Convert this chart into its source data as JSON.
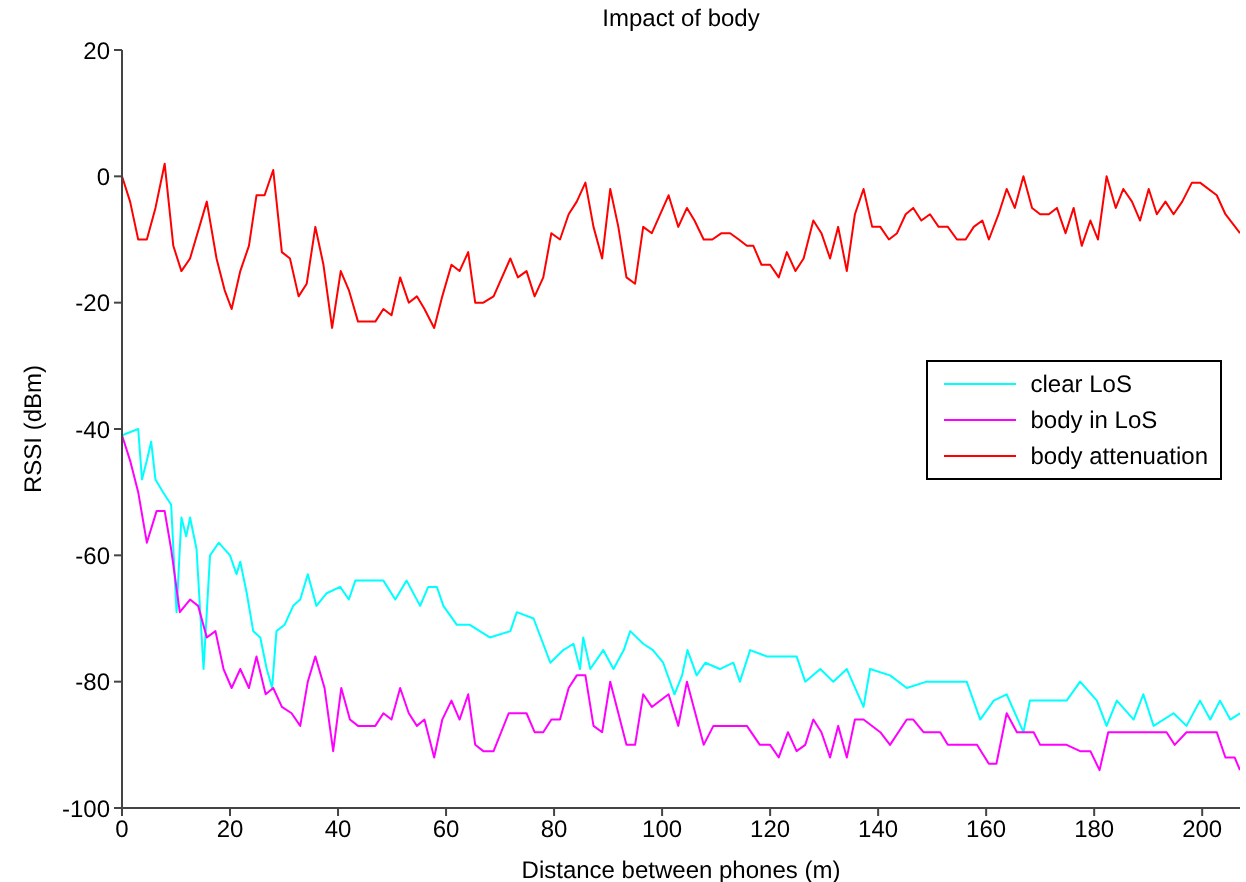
{
  "chart_data": {
    "type": "line",
    "title": "Impact of body",
    "xlabel": "Distance between phones (m)",
    "ylabel": "RSSI (dBm)",
    "xlim": [
      0,
      207
    ],
    "xticks": [
      0,
      20,
      40,
      60,
      80,
      100,
      120,
      140,
      160,
      180,
      200
    ],
    "ylim": [
      -100,
      20
    ],
    "yticks": [
      -100,
      -80,
      -60,
      -40,
      -20,
      0,
      20
    ],
    "legend": "right",
    "marker": "none",
    "line_style": "solid",
    "series": [
      {
        "name": "clear LoS",
        "color": "#00ffff",
        "x": [
          0,
          3,
          3.7,
          4.6,
          5.4,
          6.2,
          7.6,
          9.1,
          10.1,
          11,
          11.9,
          12.6,
          13.8,
          15.1,
          16.3,
          17.9,
          20,
          21.2,
          21.9,
          23.1,
          24.3,
          25.6,
          26.8,
          27.8,
          28.6,
          30.1,
          31.7,
          33,
          34.4,
          36,
          37.9,
          40.4,
          42,
          43.2,
          44.7,
          48.4,
          50.6,
          52.7,
          55.2,
          56.7,
          58.3,
          59.5,
          62,
          64.4,
          68.1,
          71.9,
          73.1,
          76.2,
          79.3,
          81.7,
          83.6,
          84.8,
          85.4,
          86.7,
          89.1,
          91,
          92.9,
          94.1,
          96.5,
          98.3,
          100.2,
          102.3,
          103.7,
          104.7,
          106.4,
          108,
          110.7,
          113.2,
          114.4,
          116.3,
          119.4,
          124.9,
          126.5,
          129.3,
          131.7,
          134.2,
          137.3,
          138.5,
          142.2,
          145.3,
          149,
          152.7,
          156.4,
          158.9,
          161.4,
          163.8,
          166.9,
          168.1,
          171.2,
          174.9,
          177.4,
          180.5,
          182.3,
          184.2,
          187.3,
          189.1,
          191,
          194.7,
          197.1,
          199.6,
          201.5,
          203.3,
          205.2,
          207
        ],
        "values": [
          -41,
          -40,
          -48,
          -45,
          -42,
          -48,
          -50,
          -52,
          -69,
          -54,
          -57,
          -54,
          -59,
          -78,
          -60,
          -58,
          -60,
          -63,
          -61,
          -66,
          -72,
          -73,
          -78,
          -81,
          -72,
          -71,
          -68,
          -67,
          -63,
          -68,
          -66,
          -65,
          -67,
          -64,
          -64,
          -64,
          -67,
          -64,
          -68,
          -65,
          -65,
          -68,
          -71,
          -71,
          -73,
          -72,
          -69,
          -70,
          -77,
          -75,
          -74,
          -78,
          -73,
          -78,
          -75,
          -78,
          -75,
          -72,
          -74,
          -75,
          -77,
          -82,
          -79,
          -75,
          -79,
          -77,
          -78,
          -77,
          -80,
          -75,
          -76,
          -76,
          -80,
          -78,
          -80,
          -78,
          -84,
          -78,
          -79,
          -81,
          -80,
          -80,
          -80,
          -86,
          -83,
          -82,
          -88,
          -83,
          -83,
          -83,
          -80,
          -83,
          -87,
          -83,
          -86,
          -82,
          -87,
          -85,
          -87,
          -83,
          -86,
          -83,
          -86,
          -85
        ]
      },
      {
        "name": "body in LoS",
        "color": "#ff00ff",
        "x": [
          0,
          1.5,
          3,
          4.6,
          6.4,
          7.9,
          9.1,
          10.7,
          12.6,
          14.1,
          15.7,
          17.3,
          18.8,
          20.3,
          21.9,
          23.5,
          24.9,
          26.6,
          28,
          29.6,
          31.4,
          33,
          34.4,
          35.8,
          37.5,
          39.1,
          40.6,
          42.2,
          43.7,
          46.9,
          48.4,
          49.9,
          51.5,
          53.1,
          54.6,
          56,
          57.8,
          59.3,
          61,
          62.5,
          64.1,
          65.4,
          66.9,
          68.8,
          71.6,
          74.9,
          76.4,
          78,
          79.5,
          81.1,
          82.7,
          84.2,
          85.8,
          87.3,
          88.9,
          90.4,
          91.9,
          93.4,
          95,
          96.5,
          98.1,
          101.2,
          103,
          104.6,
          107.7,
          109.5,
          115.7,
          118.1,
          120,
          121.6,
          123.3,
          124.9,
          126.5,
          128,
          129.5,
          131.1,
          132.6,
          134.2,
          135.7,
          137.3,
          140.4,
          142.2,
          145.3,
          146.5,
          148.4,
          151.5,
          152.9,
          158.3,
          160.5,
          161.9,
          163.8,
          165.7,
          168.8,
          170,
          174.9,
          177.4,
          179.3,
          181,
          182.6,
          193.4,
          194.9,
          197.1,
          202.7,
          204.3,
          206,
          207
        ],
        "values": [
          -41,
          -45,
          -50,
          -58,
          -53,
          -53,
          -59,
          -69,
          -67,
          -68,
          -73,
          -72,
          -78,
          -81,
          -78,
          -81,
          -76,
          -82,
          -81,
          -84,
          -85,
          -87,
          -80,
          -76,
          -81,
          -91,
          -81,
          -86,
          -87,
          -87,
          -85,
          -86,
          -81,
          -85,
          -87,
          -86,
          -92,
          -86,
          -83,
          -86,
          -82,
          -90,
          -91,
          -91,
          -85,
          -85,
          -88,
          -88,
          -86,
          -86,
          -81,
          -79,
          -79,
          -87,
          -88,
          -80,
          -85,
          -90,
          -90,
          -82,
          -84,
          -82,
          -87,
          -80,
          -90,
          -87,
          -87,
          -90,
          -90,
          -92,
          -88,
          -91,
          -90,
          -86,
          -88,
          -92,
          -87,
          -92,
          -86,
          -86,
          -88,
          -90,
          -86,
          -86,
          -88,
          -88,
          -90,
          -90,
          -93,
          -93,
          -85,
          -88,
          -88,
          -90,
          -90,
          -91,
          -91,
          -94,
          -88,
          -88,
          -90,
          -88,
          -88,
          -92,
          -92,
          -94
        ]
      },
      {
        "name": "body attenuation",
        "color": "#ff0000",
        "x": [
          0,
          1.5,
          3,
          4.6,
          6.2,
          7.9,
          9.5,
          11,
          12.6,
          15.7,
          17.5,
          19,
          20.3,
          21.9,
          23.5,
          24.9,
          26.4,
          28,
          29.6,
          31.1,
          32.7,
          34.2,
          35.8,
          37.3,
          38.9,
          40.5,
          42,
          43.7,
          46.9,
          48.4,
          49.9,
          51.5,
          53.1,
          54.6,
          56,
          57.8,
          59.3,
          61,
          62.5,
          64.1,
          65.4,
          66.9,
          68.8,
          71.9,
          73.3,
          74.9,
          76.4,
          78,
          79.5,
          81.1,
          82.7,
          84.2,
          85.8,
          87.3,
          88.9,
          90.4,
          91.9,
          93.4,
          95,
          96.5,
          98.1,
          101.2,
          103,
          104.6,
          106,
          107.7,
          109.3,
          111,
          112.6,
          114.2,
          115.7,
          116.9,
          118.4,
          120,
          121.6,
          123.1,
          124.7,
          126.2,
          128,
          129.5,
          131.1,
          132.6,
          134.2,
          135.7,
          137.3,
          138.9,
          140.4,
          142,
          143.5,
          145.1,
          146.5,
          148,
          149.6,
          151.2,
          152.9,
          154.6,
          156.2,
          157.7,
          159.3,
          160.5,
          162.3,
          163.8,
          165.3,
          166.9,
          168.5,
          170,
          171.6,
          173.1,
          174.7,
          176.2,
          177.7,
          179.3,
          180.7,
          182.3,
          184,
          185.4,
          187,
          188.5,
          190.1,
          191.6,
          193.2,
          194.7,
          196.3,
          198.1,
          199.6,
          202.7,
          204.3,
          207
        ],
        "values": [
          0,
          -4,
          -10,
          -10,
          -5,
          2,
          -11,
          -15,
          -13,
          -4,
          -13,
          -18,
          -21,
          -15,
          -11,
          -3,
          -3,
          1,
          -12,
          -13,
          -19,
          -17,
          -8,
          -14,
          -24,
          -15,
          -18,
          -23,
          -23,
          -21,
          -22,
          -16,
          -20,
          -19,
          -21,
          -24,
          -19,
          -14,
          -15,
          -12,
          -20,
          -20,
          -19,
          -13,
          -16,
          -15,
          -19,
          -16,
          -9,
          -10,
          -6,
          -4,
          -1,
          -8,
          -13,
          -2,
          -8,
          -16,
          -17,
          -8,
          -9,
          -3,
          -8,
          -5,
          -7,
          -10,
          -10,
          -9,
          -9,
          -10,
          -11,
          -11,
          -14,
          -14,
          -16,
          -12,
          -15,
          -13,
          -7,
          -9,
          -13,
          -8,
          -15,
          -6,
          -2,
          -8,
          -8,
          -10,
          -9,
          -6,
          -5,
          -7,
          -6,
          -8,
          -8,
          -10,
          -10,
          -8,
          -7,
          -10,
          -6,
          -2,
          -5,
          0,
          -5,
          -6,
          -6,
          -5,
          -9,
          -5,
          -11,
          -7,
          -10,
          0,
          -5,
          -2,
          -4,
          -7,
          -2,
          -6,
          -4,
          -6,
          -4,
          -1,
          -1,
          -3,
          -6,
          -9
        ]
      }
    ]
  }
}
